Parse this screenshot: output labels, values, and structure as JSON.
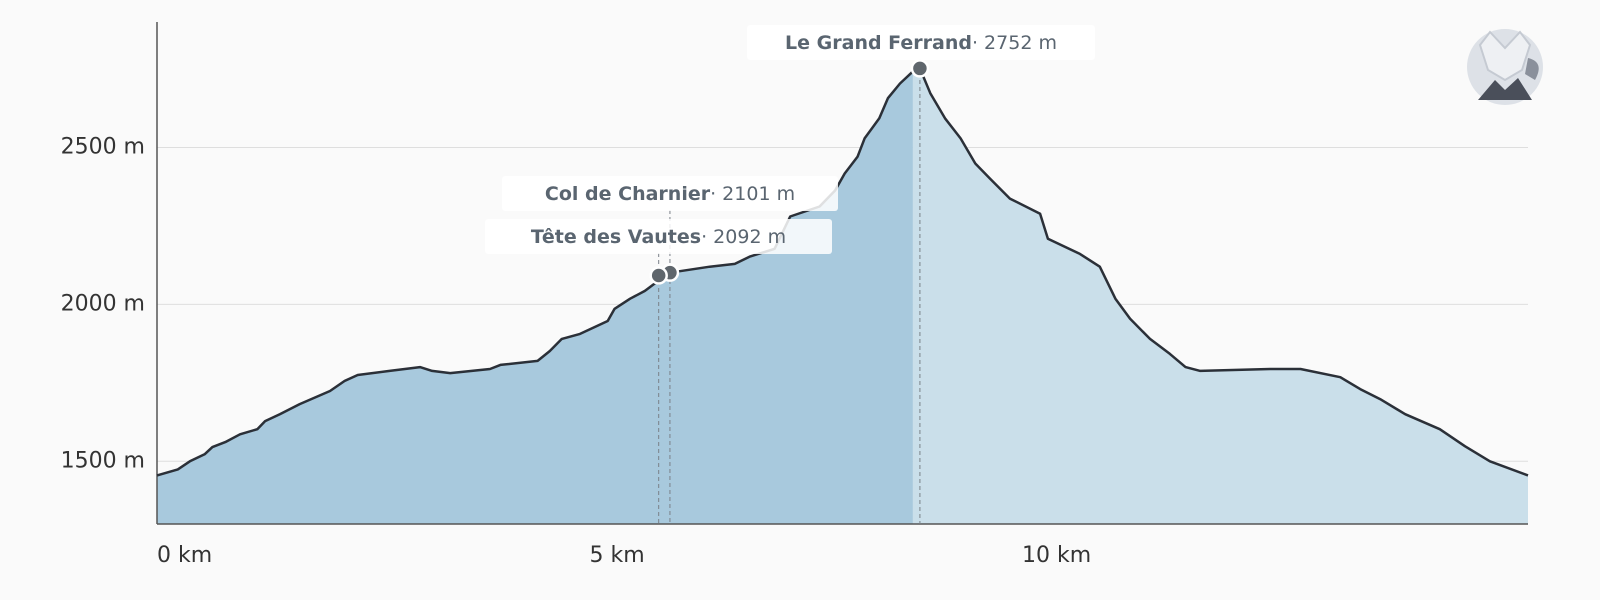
{
  "chart_data": {
    "type": "area",
    "x": [
      0,
      0.24,
      0.38,
      0.55,
      0.64,
      0.79,
      0.96,
      1.16,
      1.25,
      1.42,
      1.65,
      2.0,
      2.17,
      2.32,
      2.69,
      3.04,
      3.18,
      3.39,
      3.85,
      3.97,
      4.4,
      4.54,
      4.68,
      4.89,
      5.21,
      5.29,
      5.47,
      5.64,
      5.82,
      5.93,
      6.39,
      6.68,
      6.85,
      7.14,
      7.32,
      7.66,
      7.84,
      7.95,
      8.1,
      8.18,
      8.35,
      8.45,
      8.59,
      8.73,
      8.82,
      8.94,
      9.11,
      9.29,
      9.46,
      9.63,
      9.86,
      10.21,
      10.3,
      10.67,
      10.9,
      11.08,
      11.25,
      11.48,
      11.71,
      11.89,
      12.06,
      12.87,
      13.22,
      13.68,
      13.91,
      14.14,
      14.43,
      14.83,
      15.12,
      15.41,
      15.85
    ],
    "values": [
      1455,
      1474,
      1500,
      1522,
      1545,
      1561,
      1586,
      1602,
      1628,
      1650,
      1682,
      1724,
      1756,
      1775,
      1788,
      1800,
      1788,
      1781,
      1794,
      1807,
      1820,
      1851,
      1890,
      1906,
      1947,
      1986,
      2018,
      2043,
      2080,
      2101,
      2120,
      2129,
      2152,
      2177,
      2280,
      2312,
      2363,
      2417,
      2471,
      2529,
      2593,
      2657,
      2704,
      2740,
      2752,
      2673,
      2593,
      2529,
      2449,
      2401,
      2337,
      2289,
      2209,
      2161,
      2120,
      2018,
      1954,
      1890,
      1842,
      1800,
      1788,
      1794,
      1794,
      1768,
      1730,
      1698,
      1650,
      1602,
      1548,
      1500,
      1455
    ],
    "line_color": "#2b3038",
    "fill_color": "#a8c9dd",
    "fill_color_after": "#cadfea",
    "xlim": [
      0,
      15.85
    ],
    "ylim": [
      1300,
      2900
    ],
    "xticks": [
      {
        "value": 0,
        "label": "0 km"
      },
      {
        "value": 5,
        "label": "5 km"
      },
      {
        "value": 10,
        "label": "10 km"
      }
    ],
    "yticks": [
      {
        "value": 1500,
        "label": "1500 m"
      },
      {
        "value": 2000,
        "label": "2000 m"
      },
      {
        "value": 2500,
        "label": "2500 m"
      }
    ],
    "grid": true,
    "waypoints": [
      {
        "name": "Le Grand Ferrand",
        "distance": 8.82,
        "elevation": 2752,
        "elevation_label": "· 2752 m"
      },
      {
        "name": "Col de Charnier",
        "distance": 5.93,
        "elevation": 2101,
        "elevation_label": "· 2101 m"
      },
      {
        "name": "Tête des Vautes",
        "distance": 5.8,
        "elevation": 2092,
        "elevation_label": "· 2092 m"
      }
    ]
  }
}
